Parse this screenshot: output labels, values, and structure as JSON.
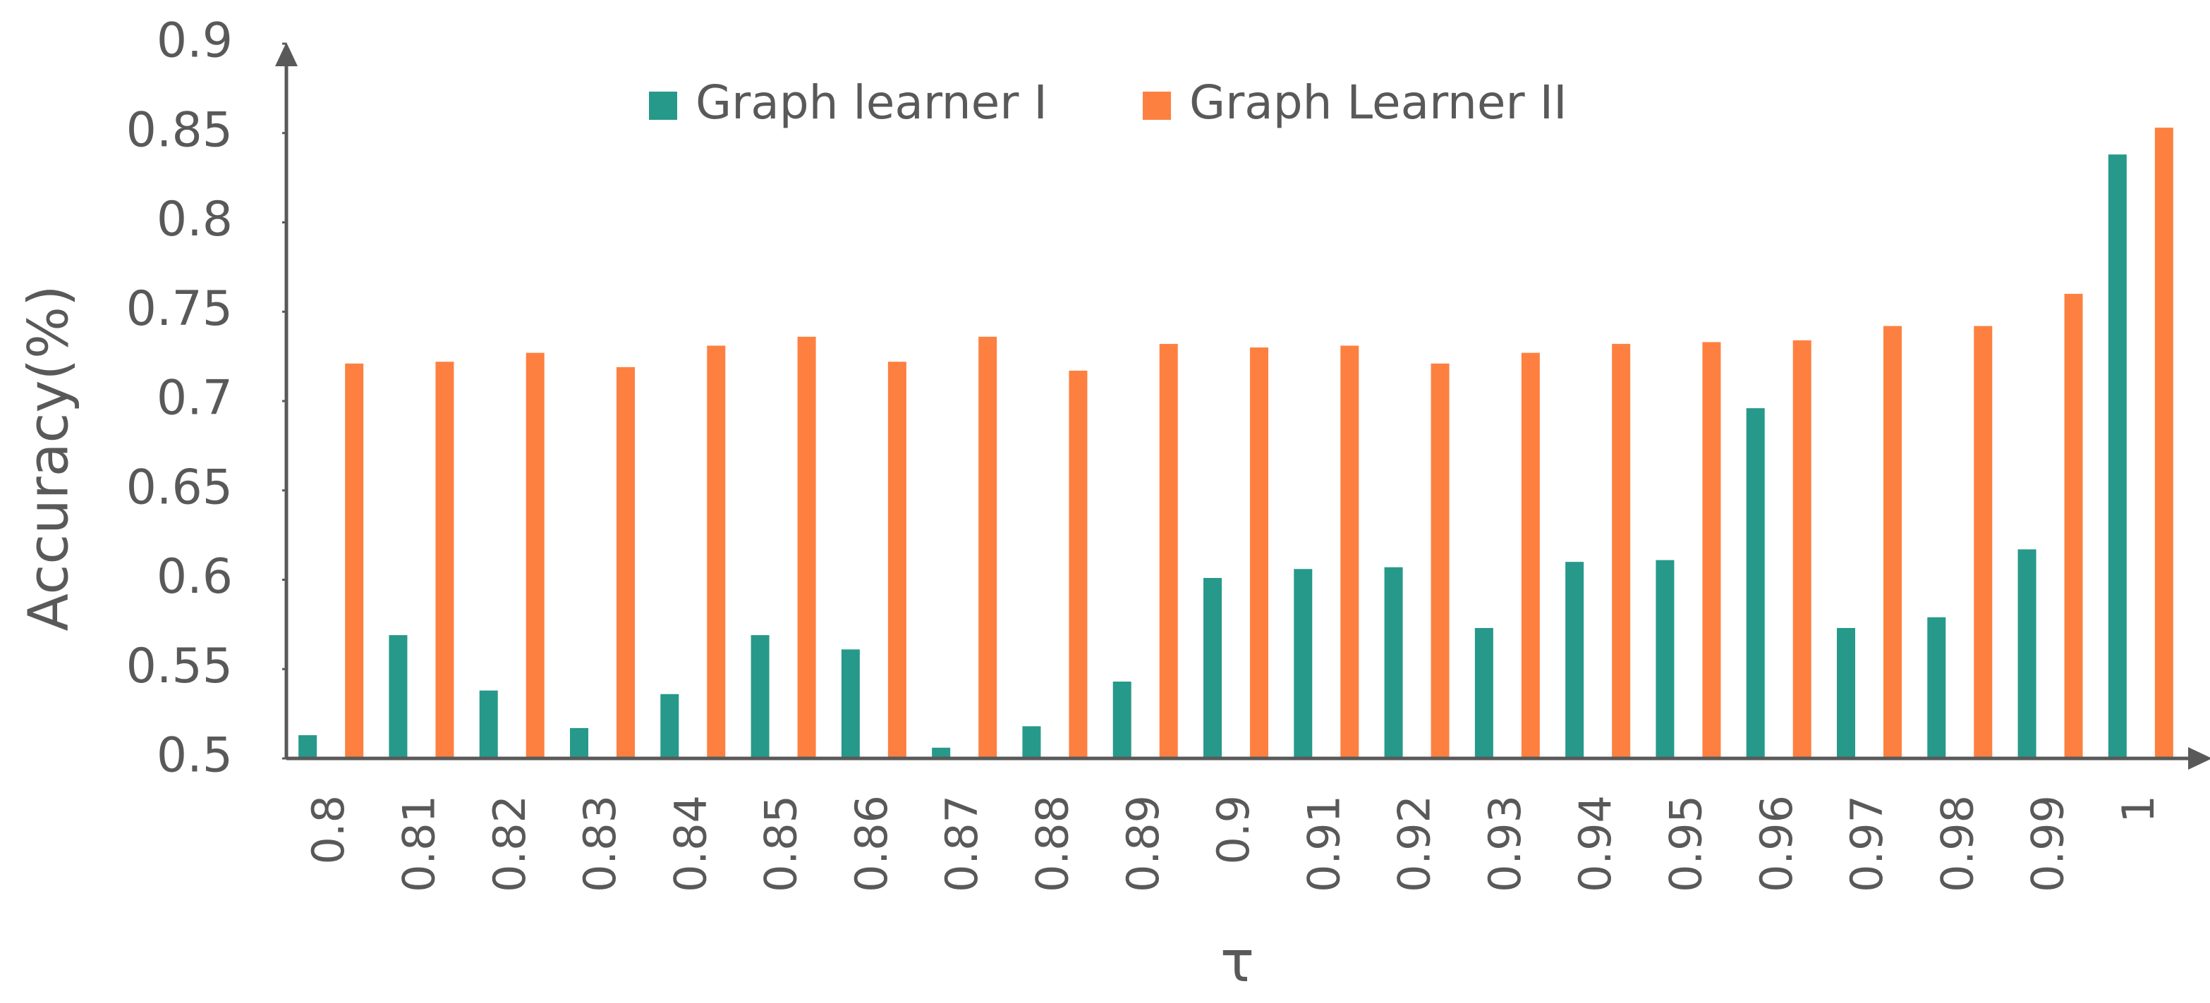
{
  "chart_data": {
    "type": "bar",
    "x_label": "τ",
    "y_label": "Accuracy(%)",
    "categories": [
      "0.8",
      "0.81",
      "0.82",
      "0.83",
      "0.84",
      "0.85",
      "0.86",
      "0.87",
      "0.88",
      "0.89",
      "0.9",
      "0.91",
      "0.92",
      "0.93",
      "0.94",
      "0.95",
      "0.96",
      "0.97",
      "0.98",
      "0.99",
      "1"
    ],
    "series": [
      {
        "name": "Graph learner I",
        "color": "#26998a",
        "values": [
          0.513,
          0.569,
          0.538,
          0.517,
          0.536,
          0.569,
          0.561,
          0.506,
          0.518,
          0.543,
          0.601,
          0.606,
          0.607,
          0.573,
          0.61,
          0.611,
          0.696,
          0.573,
          0.579,
          0.617,
          0.838
        ]
      },
      {
        "name": "Graph Learner II",
        "color": "#fd8040",
        "values": [
          0.721,
          0.722,
          0.727,
          0.719,
          0.731,
          0.736,
          0.722,
          0.736,
          0.717,
          0.732,
          0.73,
          0.731,
          0.721,
          0.727,
          0.732,
          0.733,
          0.734,
          0.742,
          0.742,
          0.76,
          0.853
        ]
      }
    ],
    "ylim": [
      0.5,
      0.9
    ],
    "yticks": [
      0.5,
      0.55,
      0.6,
      0.65,
      0.7,
      0.75,
      0.8,
      0.85,
      0.9
    ],
    "grid": false
  }
}
